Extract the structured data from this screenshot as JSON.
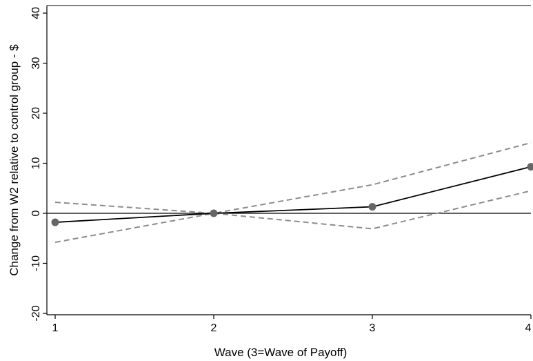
{
  "chart_data": {
    "type": "line",
    "xlabel": "Wave (3=Wave of Payoff)",
    "ylabel": "Change from W2 relative to control group - $",
    "xlim": [
      1,
      4
    ],
    "ylim": [
      -20,
      40
    ],
    "x_ticks": [
      "1",
      "2",
      "3",
      "4"
    ],
    "y_ticks": [
      "-20",
      "-10",
      "0",
      "10",
      "20",
      "30",
      "40"
    ],
    "grid": false,
    "reference_line_y": 0,
    "x": [
      1,
      2,
      3,
      4
    ],
    "estimate": [
      -1.8,
      0,
      1.3,
      9.3
    ],
    "ci_upper": [
      2.2,
      0,
      5.7,
      14.1
    ],
    "ci_lower": [
      -5.8,
      0,
      -3.1,
      4.5
    ],
    "colors": {
      "estimate_line": "#000000",
      "estimate_marker": "#666666",
      "ci_line": "#8c8c8c",
      "zero_line": "#000000"
    }
  }
}
